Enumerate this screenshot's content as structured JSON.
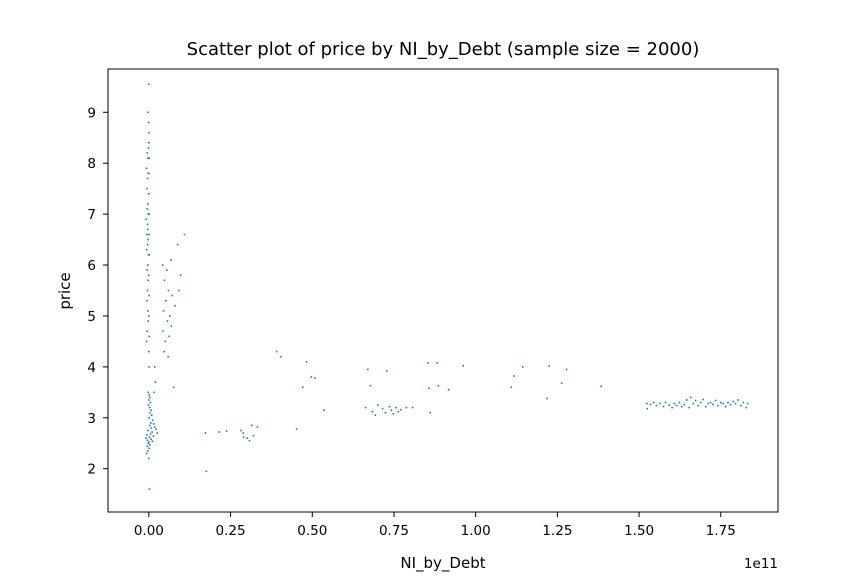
{
  "chart_data": {
    "type": "scatter",
    "title": "Scatter plot of price by NI_by_Debt (sample size = 2000)",
    "xlabel": "NI_by_Debt",
    "ylabel": "price",
    "x_offset_text": "1e11",
    "x_scale": 100000000000,
    "xlim": [
      -12500000000,
      192500000000
    ],
    "ylim": [
      1.15,
      9.85
    ],
    "grid": false,
    "point_color": "#1f77b4",
    "x_ticks": [
      0,
      25000000000,
      50000000000,
      75000000000,
      100000000000,
      125000000000,
      150000000000,
      175000000000
    ],
    "x_tick_labels": [
      "0.00",
      "0.25",
      "0.50",
      "0.75",
      "1.00",
      "1.25",
      "1.50",
      "1.75"
    ],
    "y_ticks": [
      2,
      3,
      4,
      5,
      6,
      7,
      8,
      9
    ],
    "y_tick_labels": [
      "2",
      "3",
      "4",
      "5",
      "6",
      "7",
      "8",
      "9"
    ],
    "points": [
      [
        -300000000,
        9.0
      ],
      [
        -100000000,
        8.3
      ],
      [
        -500000000,
        8.2
      ],
      [
        -300000000,
        8.1
      ],
      [
        -700000000,
        7.9
      ],
      [
        -200000000,
        7.8
      ],
      [
        -400000000,
        7.7
      ],
      [
        -600000000,
        7.5
      ],
      [
        -100000000,
        7.4
      ],
      [
        -300000000,
        7.2
      ],
      [
        -500000000,
        7.1
      ],
      [
        -200000000,
        7.0
      ],
      [
        -800000000,
        6.9
      ],
      [
        -400000000,
        6.8
      ],
      [
        -300000000,
        6.7
      ],
      [
        -600000000,
        6.6
      ],
      [
        -200000000,
        6.5
      ],
      [
        -400000000,
        6.4
      ],
      [
        -700000000,
        6.3
      ],
      [
        -100000000,
        6.2
      ],
      [
        -300000000,
        6.0
      ],
      [
        -500000000,
        5.9
      ],
      [
        -200000000,
        5.7
      ],
      [
        -400000000,
        5.5
      ],
      [
        -600000000,
        5.3
      ],
      [
        -300000000,
        5.1
      ],
      [
        -200000000,
        4.9
      ],
      [
        -500000000,
        4.7
      ],
      [
        -700000000,
        4.5
      ],
      [
        0,
        9.55
      ],
      [
        0,
        8.8
      ],
      [
        100000000,
        8.6
      ],
      [
        0,
        8.4
      ],
      [
        100000000,
        8.1
      ],
      [
        0,
        7.8
      ],
      [
        0,
        7.4
      ],
      [
        100000000,
        7.0
      ],
      [
        0,
        6.6
      ],
      [
        100000000,
        6.2
      ],
      [
        0,
        5.8
      ],
      [
        100000000,
        5.4
      ],
      [
        0,
        5.0
      ],
      [
        100000000,
        4.6
      ],
      [
        0,
        4.3
      ],
      [
        100000000,
        4.0
      ],
      [
        -200000000,
        3.5
      ],
      [
        100000000,
        3.45
      ],
      [
        300000000,
        3.4
      ],
      [
        0,
        3.35
      ],
      [
        500000000,
        3.3
      ],
      [
        -100000000,
        3.25
      ],
      [
        200000000,
        3.2
      ],
      [
        700000000,
        3.15
      ],
      [
        400000000,
        3.1
      ],
      [
        900000000,
        3.05
      ],
      [
        100000000,
        3.0
      ],
      [
        1200000000,
        2.95
      ],
      [
        600000000,
        2.9
      ],
      [
        1500000000,
        2.88
      ],
      [
        300000000,
        2.85
      ],
      [
        1800000000,
        2.82
      ],
      [
        800000000,
        2.8
      ],
      [
        2200000000,
        2.78
      ],
      [
        -300000000,
        2.75
      ],
      [
        1000000000,
        2.72
      ],
      [
        2600000000,
        2.7
      ],
      [
        500000000,
        2.68
      ],
      [
        -600000000,
        2.66
      ],
      [
        1400000000,
        2.64
      ],
      [
        200000000,
        2.62
      ],
      [
        -900000000,
        2.6
      ],
      [
        700000000,
        2.58
      ],
      [
        -400000000,
        2.56
      ],
      [
        1100000000,
        2.54
      ],
      [
        0,
        2.52
      ],
      [
        -200000000,
        2.5
      ],
      [
        300000000,
        2.47
      ],
      [
        -500000000,
        2.44
      ],
      [
        100000000,
        2.4
      ],
      [
        -300000000,
        2.35
      ],
      [
        -700000000,
        2.3
      ],
      [
        0,
        2.2
      ],
      [
        200000000,
        1.6
      ],
      [
        1600000000,
        3.5
      ],
      [
        2000000000,
        3.7
      ],
      [
        1800000000,
        4.0
      ],
      [
        4200000000,
        6.0
      ],
      [
        5500000000,
        5.9
      ],
      [
        6800000000,
        6.1
      ],
      [
        4800000000,
        5.7
      ],
      [
        6000000000,
        5.5
      ],
      [
        5200000000,
        5.3
      ],
      [
        7100000000,
        5.4
      ],
      [
        4500000000,
        5.1
      ],
      [
        6400000000,
        5.0
      ],
      [
        5700000000,
        4.9
      ],
      [
        4300000000,
        4.7
      ],
      [
        6900000000,
        4.8
      ],
      [
        5000000000,
        4.5
      ],
      [
        6200000000,
        4.6
      ],
      [
        4700000000,
        4.3
      ],
      [
        5900000000,
        4.2
      ],
      [
        8800000000,
        6.4
      ],
      [
        10900000000,
        6.6
      ],
      [
        9700000000,
        5.8
      ],
      [
        8000000000,
        5.2
      ],
      [
        7600000000,
        3.6
      ],
      [
        9200000000,
        5.5
      ],
      [
        17300000000,
        2.7
      ],
      [
        17600000000,
        1.95
      ],
      [
        21500000000,
        2.72
      ],
      [
        23800000000,
        2.74
      ],
      [
        28200000000,
        2.75
      ],
      [
        28900000000,
        2.7
      ],
      [
        30100000000,
        2.6
      ],
      [
        31500000000,
        2.85
      ],
      [
        33200000000,
        2.82
      ],
      [
        32000000000,
        2.65
      ],
      [
        30800000000,
        2.55
      ],
      [
        29000000000,
        2.62
      ],
      [
        39100000000,
        4.3
      ],
      [
        40400000000,
        4.2
      ],
      [
        45200000000,
        2.78
      ],
      [
        47100000000,
        3.6
      ],
      [
        48200000000,
        4.1
      ],
      [
        49700000000,
        3.8
      ],
      [
        50800000000,
        3.78
      ],
      [
        53600000000,
        3.15
      ],
      [
        67000000000,
        3.95
      ],
      [
        67800000000,
        3.63
      ],
      [
        66300000000,
        3.2
      ],
      [
        68400000000,
        3.12
      ],
      [
        69300000000,
        3.05
      ],
      [
        70100000000,
        3.25
      ],
      [
        71500000000,
        3.18
      ],
      [
        72400000000,
        3.1
      ],
      [
        73600000000,
        3.22
      ],
      [
        74200000000,
        3.15
      ],
      [
        74800000000,
        3.08
      ],
      [
        75600000000,
        3.2
      ],
      [
        76300000000,
        3.12
      ],
      [
        77100000000,
        3.16
      ],
      [
        78800000000,
        3.2
      ],
      [
        80700000000,
        3.2
      ],
      [
        72800000000,
        3.92
      ],
      [
        85400000000,
        4.08
      ],
      [
        85700000000,
        3.58
      ],
      [
        86100000000,
        3.1
      ],
      [
        88200000000,
        4.08
      ],
      [
        88600000000,
        3.63
      ],
      [
        91700000000,
        3.55
      ],
      [
        96200000000,
        4.02
      ],
      [
        110900000000,
        3.6
      ],
      [
        111700000000,
        3.82
      ],
      [
        114400000000,
        4.0
      ],
      [
        121800000000,
        3.38
      ],
      [
        122500000000,
        4.02
      ],
      [
        126300000000,
        3.68
      ],
      [
        127800000000,
        3.95
      ],
      [
        138400000000,
        3.62
      ],
      [
        152400000000,
        3.28
      ],
      [
        152500000000,
        3.18
      ],
      [
        153500000000,
        3.26
      ],
      [
        154500000000,
        3.3
      ],
      [
        155300000000,
        3.24
      ],
      [
        156400000000,
        3.28
      ],
      [
        157500000000,
        3.22
      ],
      [
        158100000000,
        3.3
      ],
      [
        159200000000,
        3.25
      ],
      [
        160100000000,
        3.2
      ],
      [
        160800000000,
        3.28
      ],
      [
        161500000000,
        3.24
      ],
      [
        162300000000,
        3.3
      ],
      [
        163100000000,
        3.22
      ],
      [
        163800000000,
        3.26
      ],
      [
        164600000000,
        3.35
      ],
      [
        165300000000,
        3.2
      ],
      [
        165800000000,
        3.4
      ],
      [
        166600000000,
        3.28
      ],
      [
        167300000000,
        3.34
      ],
      [
        168100000000,
        3.24
      ],
      [
        168900000000,
        3.3
      ],
      [
        169600000000,
        3.36
      ],
      [
        170400000000,
        3.22
      ],
      [
        171100000000,
        3.28
      ],
      [
        171900000000,
        3.3
      ],
      [
        172600000000,
        3.26
      ],
      [
        173400000000,
        3.34
      ],
      [
        174100000000,
        3.24
      ],
      [
        175000000000,
        3.3
      ],
      [
        175700000000,
        3.28
      ],
      [
        176500000000,
        3.22
      ],
      [
        177200000000,
        3.3
      ],
      [
        178000000000,
        3.26
      ],
      [
        178800000000,
        3.32
      ],
      [
        179500000000,
        3.28
      ],
      [
        180300000000,
        3.35
      ],
      [
        181100000000,
        3.24
      ],
      [
        181900000000,
        3.3
      ],
      [
        182800000000,
        3.2
      ],
      [
        183200000000,
        3.28
      ]
    ]
  }
}
